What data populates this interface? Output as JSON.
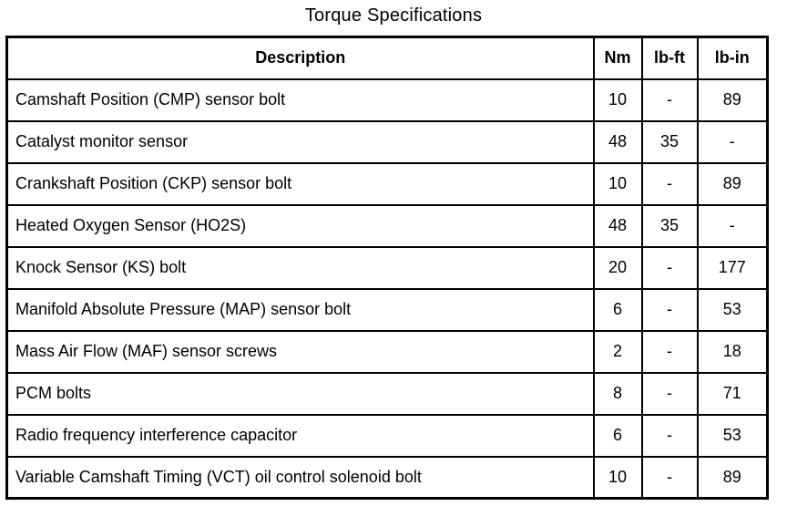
{
  "page_title": "Torque Specifications",
  "colors": {
    "border": "#000000",
    "background": "#ffffff",
    "text": "#000000"
  },
  "table": {
    "columns": [
      "Description",
      "Nm",
      "lb-ft",
      "lb-in"
    ],
    "rows": [
      {
        "description": "Camshaft Position (CMP) sensor bolt",
        "nm": "10",
        "lb_ft": "-",
        "lb_in": "89"
      },
      {
        "description": "Catalyst monitor sensor",
        "nm": "48",
        "lb_ft": "35",
        "lb_in": "-"
      },
      {
        "description": "Crankshaft Position (CKP) sensor bolt",
        "nm": "10",
        "lb_ft": "-",
        "lb_in": "89"
      },
      {
        "description": "Heated Oxygen Sensor (HO2S)",
        "nm": "48",
        "lb_ft": "35",
        "lb_in": "-"
      },
      {
        "description": "Knock Sensor (KS) bolt",
        "nm": "20",
        "lb_ft": "-",
        "lb_in": "177"
      },
      {
        "description": "Manifold Absolute Pressure (MAP) sensor bolt",
        "nm": "6",
        "lb_ft": "-",
        "lb_in": "53"
      },
      {
        "description": "Mass Air Flow (MAF) sensor screws",
        "nm": "2",
        "lb_ft": "-",
        "lb_in": "18"
      },
      {
        "description": "PCM bolts",
        "nm": "8",
        "lb_ft": "-",
        "lb_in": "71"
      },
      {
        "description": "Radio frequency interference capacitor",
        "nm": "6",
        "lb_ft": "-",
        "lb_in": "53"
      },
      {
        "description": "Variable Camshaft Timing (VCT) oil control solenoid bolt",
        "nm": "10",
        "lb_ft": "-",
        "lb_in": "89"
      }
    ]
  }
}
